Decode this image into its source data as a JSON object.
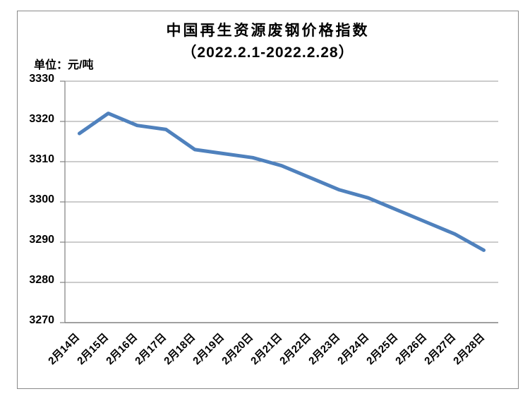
{
  "chart_data": {
    "type": "line",
    "title": "中国再生资源废钢价格指数",
    "subtitle": "（2022.2.1-2022.2.28）",
    "unit_label": "单位：元/吨",
    "categories": [
      "2月14日",
      "2月15日",
      "2月16日",
      "2月17日",
      "2月18日",
      "2月19日",
      "2月20日",
      "2月21日",
      "2月22日",
      "2月23日",
      "2月24日",
      "2月25日",
      "2月26日",
      "2月27日",
      "2月28日"
    ],
    "values": [
      3317,
      3322,
      3319,
      3318,
      3313,
      3312,
      3311,
      3309,
      3306,
      3303,
      3301,
      3298,
      3295,
      3292,
      3288
    ],
    "yticks": [
      3330,
      3320,
      3310,
      3300,
      3290,
      3280,
      3270
    ],
    "ylim": [
      3270,
      3330
    ],
    "grid": true,
    "legend": "none",
    "line_color": "#4F81BD",
    "grid_color": "#9a9a9a",
    "axis_color": "#808080",
    "border_color": "#8a8a8a",
    "text_color": "#000000"
  }
}
